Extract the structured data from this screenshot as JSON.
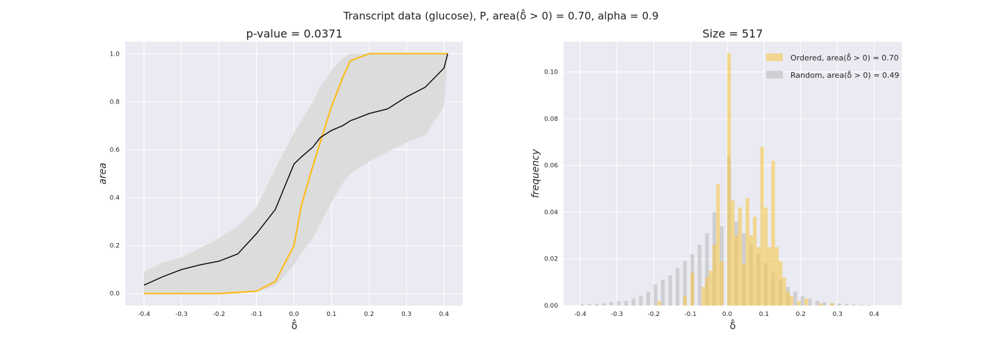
{
  "figure": {
    "suptitle": "Transcript data (glucose), P, area(δ̂ > 0) = 0.70, alpha = 0.9"
  },
  "colors": {
    "ordered": "#fbbc1a",
    "random": "#000000",
    "band": "#dcdcdc",
    "axes_bg": "#eaeaf2",
    "grid": "#ffffff",
    "hist_ordered": "#f5c84c",
    "hist_random": "#c4c4c8"
  },
  "chart_data": [
    {
      "type": "line",
      "title": "p-value = 0.0371",
      "xlabel": "δ̂",
      "ylabel": "area",
      "xlim": [
        -0.45,
        0.45
      ],
      "ylim": [
        -0.05,
        1.05
      ],
      "xticks": [
        "-0.4",
        "-0.3",
        "-0.2",
        "-0.1",
        "0.0",
        "0.1",
        "0.2",
        "0.3",
        "0.4"
      ],
      "yticks": [
        "0.0",
        "0.2",
        "0.4",
        "0.6",
        "0.8",
        "1.0"
      ],
      "grid": true,
      "x": [
        -0.4,
        -0.35,
        -0.3,
        -0.25,
        -0.2,
        -0.15,
        -0.1,
        -0.05,
        0.0,
        0.02,
        0.05,
        0.07,
        0.1,
        0.13,
        0.15,
        0.2,
        0.25,
        0.3,
        0.35,
        0.4,
        0.41
      ],
      "series": [
        {
          "values": [
            0.0,
            0.0,
            0.0,
            0.0,
            0.0,
            0.005,
            0.01,
            0.05,
            0.2,
            0.37,
            0.53,
            0.63,
            0.78,
            0.9,
            0.97,
            1.0,
            1.0,
            1.0,
            1.0,
            1.0,
            1.0
          ]
        },
        {
          "values": [
            0.035,
            0.07,
            0.1,
            0.12,
            0.135,
            0.165,
            0.25,
            0.35,
            0.54,
            0.57,
            0.61,
            0.65,
            0.68,
            0.7,
            0.72,
            0.75,
            0.77,
            0.82,
            0.86,
            0.94,
            1.0
          ]
        }
      ],
      "band": {
        "upper": [
          0.09,
          0.13,
          0.15,
          0.19,
          0.23,
          0.28,
          0.36,
          0.52,
          0.67,
          0.72,
          0.8,
          0.86,
          0.93,
          0.98,
          1.0,
          1.0,
          1.0,
          1.0,
          1.0,
          1.0,
          1.0
        ],
        "lower": [
          0.0,
          0.0,
          0.0,
          0.0,
          0.0,
          0.0,
          0.01,
          0.03,
          0.12,
          0.17,
          0.23,
          0.29,
          0.38,
          0.46,
          0.5,
          0.55,
          0.59,
          0.63,
          0.66,
          0.78,
          1.0
        ]
      }
    },
    {
      "type": "bar",
      "title": "Size = 517",
      "xlabel": "δ̂",
      "ylabel": "frequency",
      "xlim": [
        -0.445,
        0.475
      ],
      "ylim": [
        0.0,
        0.113
      ],
      "xticks": [
        "-0.4",
        "-0.3",
        "-0.2",
        "-0.1",
        "0.0",
        "0.1",
        "0.2",
        "0.3",
        "0.4"
      ],
      "yticks": [
        "0.00",
        "0.02",
        "0.04",
        "0.06",
        "0.08",
        "0.10"
      ],
      "grid": true,
      "legend_position": "top-right",
      "bin_width": 0.01,
      "series": [
        {
          "name": "Ordered, area(δ̂ > 0) = 0.70",
          "bin_starts": [
            -0.19,
            -0.12,
            -0.1,
            -0.07,
            -0.06,
            -0.05,
            -0.04,
            -0.03,
            -0.02,
            -0.01,
            0.0,
            0.01,
            0.02,
            0.03,
            0.04,
            0.05,
            0.06,
            0.07,
            0.08,
            0.09,
            0.1,
            0.11,
            0.12,
            0.13,
            0.14,
            0.15,
            0.16,
            0.17,
            0.19,
            0.21,
            0.25,
            0.28
          ],
          "values": [
            0.002,
            0.004,
            0.014,
            0.008,
            0.012,
            0.015,
            0.026,
            0.052,
            0.019,
            0.0,
            0.108,
            0.045,
            0.03,
            0.042,
            0.018,
            0.046,
            0.03,
            0.038,
            0.025,
            0.068,
            0.042,
            0.025,
            0.062,
            0.025,
            0.019,
            0.012,
            0.006,
            0.004,
            0.002,
            0.003,
            0.001,
            0.001
          ]
        },
        {
          "name": "Random, area(δ̂ > 0) = 0.49",
          "bin_starts": [
            -0.4,
            -0.38,
            -0.36,
            -0.34,
            -0.32,
            -0.3,
            -0.28,
            -0.26,
            -0.24,
            -0.22,
            -0.2,
            -0.18,
            -0.16,
            -0.14,
            -0.12,
            -0.1,
            -0.08,
            -0.06,
            -0.04,
            -0.02,
            0.0,
            0.02,
            0.04,
            0.06,
            0.08,
            0.1,
            0.12,
            0.14,
            0.16,
            0.18,
            0.2,
            0.22,
            0.24,
            0.26,
            0.28,
            0.3,
            0.32,
            0.34,
            0.36,
            0.38
          ],
          "values": [
            0.0005,
            0.0005,
            0.0007,
            0.001,
            0.0015,
            0.0018,
            0.002,
            0.003,
            0.004,
            0.006,
            0.009,
            0.011,
            0.013,
            0.016,
            0.019,
            0.022,
            0.026,
            0.031,
            0.04,
            0.034,
            0.064,
            0.036,
            0.031,
            0.026,
            0.022,
            0.018,
            0.014,
            0.011,
            0.008,
            0.006,
            0.004,
            0.003,
            0.002,
            0.0015,
            0.001,
            0.0008,
            0.0006,
            0.0004,
            0.0003,
            0.0002
          ]
        }
      ]
    }
  ]
}
